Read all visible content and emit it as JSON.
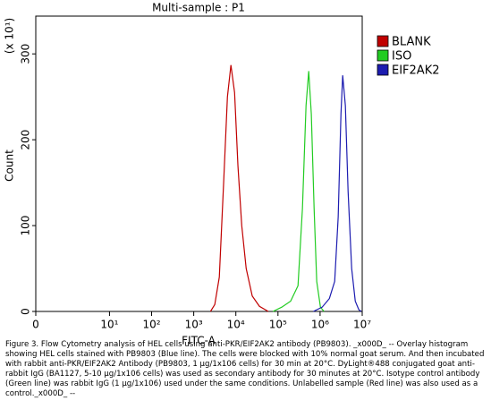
{
  "chart_data": {
    "type": "line",
    "title": "Multi-sample : P1",
    "x_label": "FITC-A",
    "y_label": "Count",
    "y_multiplier": "(x 10¹)",
    "xscale": "symlog",
    "linthresh": 10,
    "linscale": 1.75,
    "xlim": [
      0,
      10000000
    ],
    "xticks": [
      0,
      {
        "value": 10,
        "label": "10¹"
      },
      {
        "value": 100,
        "label": "10²"
      },
      {
        "value": 1000,
        "label": "10³"
      },
      {
        "value": 10000,
        "label": "10⁴"
      },
      {
        "value": 100000,
        "label": "10⁵"
      },
      {
        "value": 1000000,
        "label": "10⁶"
      },
      {
        "value": 10000000,
        "label": "10⁷"
      }
    ],
    "ylim": [
      0,
      344
    ],
    "yticks": [
      0,
      100,
      200,
      300
    ],
    "legend": "upper right",
    "series": [
      {
        "name": "BLANK",
        "color": "#c00000",
        "x": [
          2500,
          3160,
          4050,
          5130,
          6310,
          7640,
          9330,
          11200,
          13800,
          17600,
          24500,
          36300,
          58900
        ],
        "values": [
          0,
          8,
          40,
          150,
          250,
          287,
          255,
          170,
          100,
          50,
          18,
          6,
          0
        ]
      },
      {
        "name": "ISO",
        "color": "#22cc22",
        "x": [
          75900,
          123000,
          200000,
          299000,
          381000,
          464000,
          537000,
          619000,
          721000,
          832000,
          1020000,
          1240000
        ],
        "values": [
          0,
          5,
          12,
          30,
          120,
          240,
          280,
          230,
          120,
          35,
          5,
          0
        ]
      },
      {
        "name": "EIF2AK2",
        "color": "#1c1cb0",
        "x": [
          692000,
          1120000,
          1660000,
          2220000,
          2690000,
          3130000,
          3440000,
          3980000,
          4620000,
          5620000,
          6840000,
          8320000,
          9550000
        ],
        "values": [
          0,
          5,
          15,
          35,
          110,
          230,
          275,
          240,
          140,
          50,
          12,
          2,
          0
        ]
      }
    ],
    "caption": "Figure 3. Flow Cytometry analysis of HEL cells using anti-PKR/EIF2AK2 antibody (PB9803). _x000D_ -- Overlay histogram showing HEL cells stained with PB9803 (Blue line). The cells were blocked with 10% normal goat serum. And then incubated with rabbit anti-PKR/EIF2AK2 Antibody (PB9803, 1 µg/1x106 cells) for 30 min at 20°C. DyLight®488 conjugated goat anti-rabbit IgG (BA1127, 5-10 µg/1x106 cells) was used as secondary antibody for 30 minutes at 20°C. Isotype control antibody (Green line) was rabbit IgG (1 µg/1x106) used under the same conditions. Unlabelled sample (Red line) was also used as a control._x000D_ --"
  }
}
